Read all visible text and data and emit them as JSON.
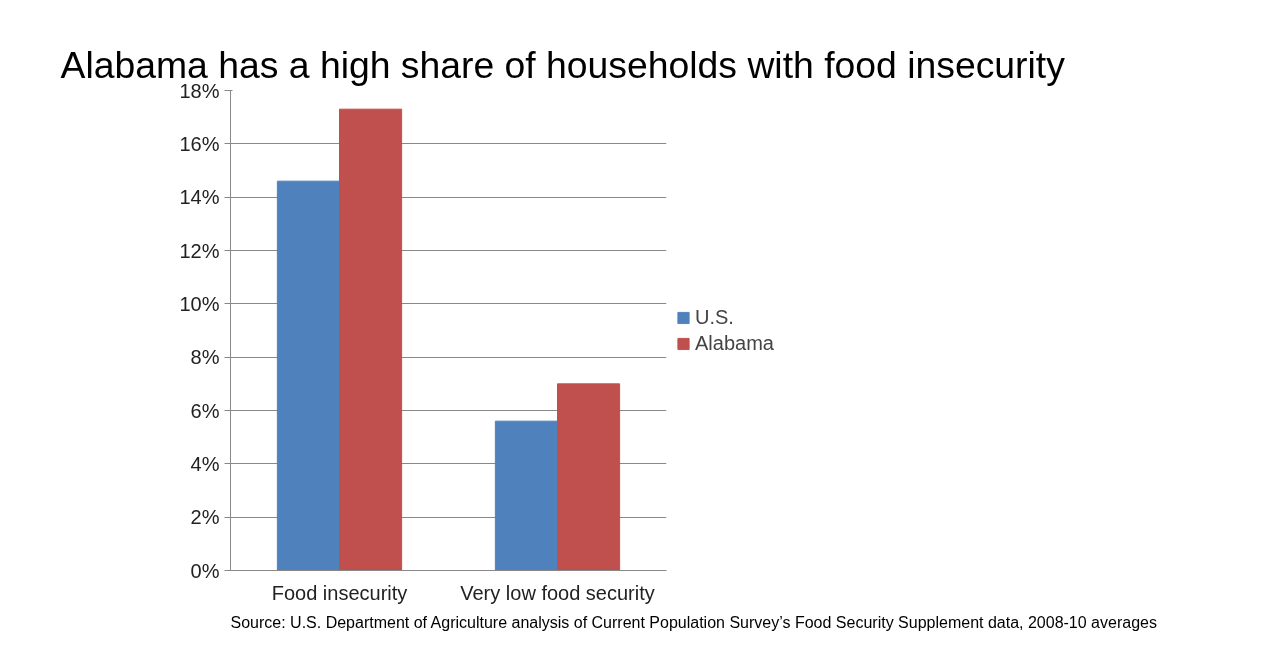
{
  "chart_data": {
    "type": "bar",
    "title": "Alabama has a high share of households with food insecurity",
    "categories": [
      "Food insecurity",
      "Very low food security"
    ],
    "series": [
      {
        "name": "U.S.",
        "color": "#4f81bd",
        "values": [
          14.6,
          5.6
        ]
      },
      {
        "name": "Alabama",
        "color": "#c0504d",
        "values": [
          17.3,
          7.0
        ]
      }
    ],
    "ylim": [
      0,
      18
    ],
    "yticks": [
      {
        "value": 0,
        "label": "0%"
      },
      {
        "value": 2,
        "label": "2%"
      },
      {
        "value": 4,
        "label": "4%"
      },
      {
        "value": 6,
        "label": "6%"
      },
      {
        "value": 8,
        "label": "8%"
      },
      {
        "value": 10,
        "label": "10%"
      },
      {
        "value": 12,
        "label": "12%"
      },
      {
        "value": 14,
        "label": "14%"
      },
      {
        "value": 16,
        "label": "16%"
      },
      {
        "value": 18,
        "label": "18%"
      }
    ],
    "grid": "y",
    "legend": "right",
    "annotations": [
      "Source: U.S. Department of Agriculture analysis of Current Population Survey’s Food Security Supplement data, 2008-10 averages"
    ]
  }
}
